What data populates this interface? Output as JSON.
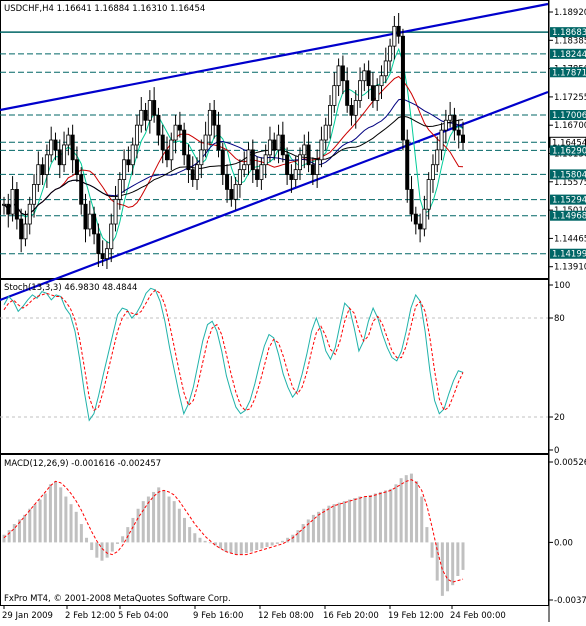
{
  "window": {
    "symbol_header": "USDCHF,H4  1.16641  1.16884  1.16310  1.16454",
    "copyright": "FxPro MT4, © 2001-2008 MetaQuotes Software Corp."
  },
  "colors": {
    "background": "#ffffff",
    "candle": "#000000",
    "trendline": "#0000cc",
    "hline": "#006666",
    "ma_fast": "#00cc99",
    "ma_mid": "#cc0000",
    "ma_slow_blue": "#000080",
    "ma_slow_black": "#000000",
    "stoch_main": "#20b2aa",
    "stoch_signal": "#ff0000",
    "macd_hist": "#c0c0c0",
    "macd_signal": "#ff0000",
    "price_label_bg": "#006666"
  },
  "price_axis": {
    "ticks": [
      "1.18920",
      "1.18385",
      "1.17850",
      "1.17255",
      "1.16700",
      "1.16130",
      "1.15575",
      "1.15010",
      "1.14465",
      "1.13910"
    ],
    "highlight_levels": [
      {
        "label": "1.18683",
        "value": 1.18683
      },
      {
        "label": "1.18244",
        "value": 1.18244
      },
      {
        "label": "1.17871",
        "value": 1.17871
      },
      {
        "label": "1.17006",
        "value": 1.17006
      },
      {
        "label": "1.16454",
        "value": 1.16454
      },
      {
        "label": "1.16290",
        "value": 1.1629
      },
      {
        "label": "1.15804",
        "value": 1.15804
      },
      {
        "label": "1.15294",
        "value": 1.15294
      },
      {
        "label": "1.14968",
        "value": 1.14968
      },
      {
        "label": "1.14199",
        "value": 1.14199
      }
    ],
    "ylim": [
      1.1391,
      1.1905
    ]
  },
  "time_axis": {
    "labels": [
      "29 Jan 2009",
      "2 Feb 12:00",
      "5 Feb 04:00",
      "9 Feb 16:00",
      "12 Feb 08:00",
      "16 Feb 20:00",
      "19 Feb 12:00",
      "24 Feb 00:00"
    ]
  },
  "stoch": {
    "header": "Stoch(13,3,3) 46.9830 48.4844",
    "axis_ticks": [
      "100",
      "80",
      "20",
      "0"
    ]
  },
  "macd": {
    "header": "MACD(12,26,9) -0.001616 -0.002457",
    "axis_ticks": [
      "0.00526",
      "0.00",
      "-0.00377"
    ]
  },
  "chart_data": {
    "type": "line",
    "candles_close": [
      1.152,
      1.15,
      1.155,
      1.149,
      1.145,
      1.148,
      1.152,
      1.156,
      1.16,
      1.158,
      1.162,
      1.165,
      1.163,
      1.16,
      1.164,
      1.166,
      1.161,
      1.158,
      1.152,
      1.147,
      1.15,
      1.146,
      1.142,
      1.141,
      1.143,
      1.148,
      1.153,
      1.157,
      1.161,
      1.16,
      1.164,
      1.168,
      1.171,
      1.169,
      1.173,
      1.17,
      1.166,
      1.163,
      1.161,
      1.165,
      1.168,
      1.167,
      1.162,
      1.159,
      1.157,
      1.16,
      1.163,
      1.166,
      1.171,
      1.168,
      1.163,
      1.158,
      1.155,
      1.153,
      1.156,
      1.159,
      1.16,
      1.163,
      1.159,
      1.157,
      1.16,
      1.162,
      1.165,
      1.163,
      1.166,
      1.162,
      1.158,
      1.157,
      1.159,
      1.162,
      1.164,
      1.16,
      1.158,
      1.161,
      1.165,
      1.168,
      1.172,
      1.176,
      1.18,
      1.177,
      1.172,
      1.17,
      1.173,
      1.177,
      1.179,
      1.176,
      1.173,
      1.176,
      1.178,
      1.181,
      1.184,
      1.188,
      1.186,
      1.165,
      1.155,
      1.15,
      1.148,
      1.147,
      1.151,
      1.157,
      1.16,
      1.163,
      1.167,
      1.169,
      1.17,
      1.167,
      1.166,
      1.1645
    ],
    "stoch_main": [
      88,
      93,
      90,
      84,
      87,
      91,
      94,
      92,
      96,
      95,
      91,
      94,
      93,
      86,
      82,
      72,
      55,
      35,
      18,
      22,
      33,
      46,
      58,
      70,
      82,
      86,
      85,
      80,
      83,
      88,
      95,
      98,
      97,
      90,
      78,
      62,
      48,
      34,
      22,
      28,
      38,
      52,
      66,
      76,
      78,
      72,
      60,
      45,
      35,
      26,
      22,
      24,
      30,
      40,
      52,
      63,
      70,
      68,
      58,
      46,
      38,
      32,
      36,
      46,
      58,
      72,
      80,
      72,
      60,
      55,
      62,
      76,
      89,
      86,
      74,
      60,
      66,
      78,
      86,
      80,
      70,
      62,
      56,
      54,
      60,
      72,
      86,
      94,
      90,
      72,
      48,
      30,
      22,
      25,
      34,
      42,
      48,
      47
    ],
    "stoch_signal": [
      85,
      89,
      91,
      88,
      86,
      88,
      91,
      93,
      94,
      95,
      94,
      93,
      93,
      90,
      86,
      79,
      67,
      50,
      32,
      24,
      26,
      36,
      48,
      60,
      72,
      80,
      84,
      83,
      82,
      84,
      89,
      94,
      97,
      95,
      88,
      76,
      62,
      48,
      35,
      27,
      30,
      40,
      53,
      66,
      74,
      76,
      70,
      58,
      46,
      35,
      27,
      24,
      25,
      31,
      40,
      51,
      62,
      67,
      65,
      57,
      47,
      38,
      34,
      38,
      47,
      60,
      71,
      75,
      69,
      61,
      58,
      66,
      78,
      86,
      83,
      73,
      66,
      69,
      78,
      81,
      76,
      68,
      60,
      56,
      56,
      63,
      75,
      87,
      90,
      84,
      68,
      48,
      31,
      24,
      26,
      33,
      41,
      47
    ],
    "macd_hist": [
      0.0005,
      0.0008,
      0.0012,
      0.0015,
      0.0018,
      0.0022,
      0.0025,
      0.0028,
      0.0032,
      0.0038,
      0.004,
      0.0036,
      0.003,
      0.0025,
      0.002,
      0.0012,
      0.0003,
      -0.0005,
      -0.001,
      -0.0012,
      -0.001,
      -0.0006,
      -0.0001,
      0.0004,
      0.001,
      0.0016,
      0.0022,
      0.0027,
      0.003,
      0.0033,
      0.0036,
      0.0034,
      0.003,
      0.0027,
      0.0022,
      0.0016,
      0.001,
      0.0006,
      0.0003,
      0.0001,
      0.0,
      -0.0002,
      -0.0004,
      -0.0006,
      -0.0007,
      -0.0008,
      -0.0008,
      -0.0007,
      -0.0006,
      -0.0005,
      -0.0004,
      -0.0003,
      -0.0002,
      -0.0001,
      0.0001,
      0.0003,
      0.0005,
      0.0008,
      0.0012,
      0.0015,
      0.0018,
      0.002,
      0.0022,
      0.0024,
      0.0025,
      0.0026,
      0.0027,
      0.0028,
      0.0029,
      0.003,
      0.003,
      0.0031,
      0.0032,
      0.0033,
      0.0034,
      0.0035,
      0.0038,
      0.0042,
      0.0044,
      0.0045,
      0.004,
      0.003,
      0.001,
      -0.001,
      -0.0025,
      -0.0035,
      -0.0032,
      -0.0028,
      -0.0022,
      -0.0018
    ],
    "macd_signal": [
      0.0003,
      0.0006,
      0.0009,
      0.0013,
      0.0017,
      0.0021,
      0.0025,
      0.0029,
      0.0033,
      0.0037,
      0.004,
      0.0039,
      0.0036,
      0.0032,
      0.0027,
      0.0021,
      0.0014,
      0.0007,
      0.0001,
      -0.0004,
      -0.0007,
      -0.0008,
      -0.0006,
      -0.0002,
      0.0004,
      0.001,
      0.0016,
      0.0021,
      0.0026,
      0.003,
      0.0033,
      0.0034,
      0.0033,
      0.0031,
      0.0027,
      0.0022,
      0.0017,
      0.0012,
      0.0008,
      0.0004,
      0.0001,
      -0.0002,
      -0.0004,
      -0.0006,
      -0.0007,
      -0.0008,
      -0.0008,
      -0.0008,
      -0.0007,
      -0.0006,
      -0.0005,
      -0.0004,
      -0.0003,
      -0.0002,
      -0.0001,
      0.0001,
      0.0003,
      0.0006,
      0.0009,
      0.0012,
      0.0015,
      0.0018,
      0.002,
      0.0022,
      0.0024,
      0.0025,
      0.0026,
      0.0027,
      0.0028,
      0.0029,
      0.003,
      0.003,
      0.0031,
      0.0032,
      0.0033,
      0.0034,
      0.0036,
      0.0038,
      0.004,
      0.0041,
      0.0039,
      0.0034,
      0.0024,
      0.001,
      -0.0005,
      -0.0018,
      -0.0024,
      -0.0026,
      -0.0025,
      -0.0024
    ]
  }
}
